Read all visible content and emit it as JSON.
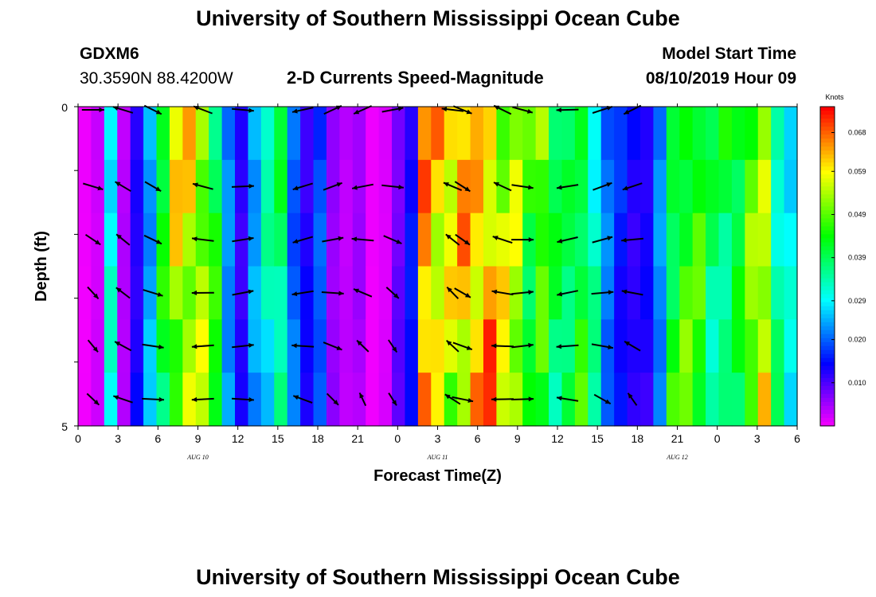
{
  "header": {
    "title_top": "University of Southern Mississippi Ocean Cube",
    "title_bottom": "University of Southern Mississippi Ocean Cube",
    "station": "GDXM6",
    "location": "30.3590N 88.4200W",
    "chart_title": "2-D Currents Speed-Magnitude",
    "start_label": "Model Start Time",
    "start_value": "08/10/2019 Hour 09"
  },
  "chart_data": {
    "type": "heatmap",
    "title": "2-D Currents Speed-Magnitude",
    "xlabel": "Forecast Time(Z)",
    "ylabel": "Depth (ft)",
    "x_tick_labels": [
      "0",
      "3",
      "6",
      "9",
      "12",
      "15",
      "18",
      "21",
      "0",
      "3",
      "6",
      "9",
      "12",
      "15",
      "18",
      "21",
      "0",
      "3",
      "6"
    ],
    "date_labels": [
      {
        "label": "AUG 10",
        "hour_index": 12
      },
      {
        "label": "AUG 11",
        "hour_index": 36
      },
      {
        "label": "AUG 12",
        "hour_index": 60
      }
    ],
    "y_tick_labels": [
      "0",
      "5"
    ],
    "depth_range": [
      0,
      5
    ],
    "n_time_steps": 55,
    "n_depth_levels": 6,
    "colorbar": {
      "unit": "Knots",
      "ticks": [
        "0.068",
        "0.059",
        "0.049",
        "0.039",
        "0.029",
        "0.020",
        "0.010"
      ],
      "tick_values": [
        0.068,
        0.059,
        0.049,
        0.039,
        0.029,
        0.02,
        0.01
      ],
      "range": [
        0.0,
        0.074
      ]
    },
    "speed_profile_by_time": [
      0.001,
      0.003,
      0.03,
      0.004,
      0.012,
      0.024,
      0.046,
      0.062,
      0.06,
      0.052,
      0.04,
      0.021,
      0.012,
      0.026,
      0.036,
      0.04,
      0.02,
      0.012,
      0.018,
      0.006,
      0.004,
      0.006,
      0.001,
      0.002,
      0.008,
      0.014,
      0.064,
      0.063,
      0.064,
      0.066,
      0.06,
      0.058,
      0.052,
      0.054,
      0.046,
      0.054,
      0.042,
      0.038,
      0.039,
      0.031,
      0.021,
      0.017,
      0.014,
      0.014,
      0.022,
      0.038,
      0.043,
      0.046,
      0.04,
      0.042,
      0.044,
      0.049,
      0.051,
      0.032,
      0.029
    ],
    "note_arrows": "direction vectors at selected times and depths"
  }
}
